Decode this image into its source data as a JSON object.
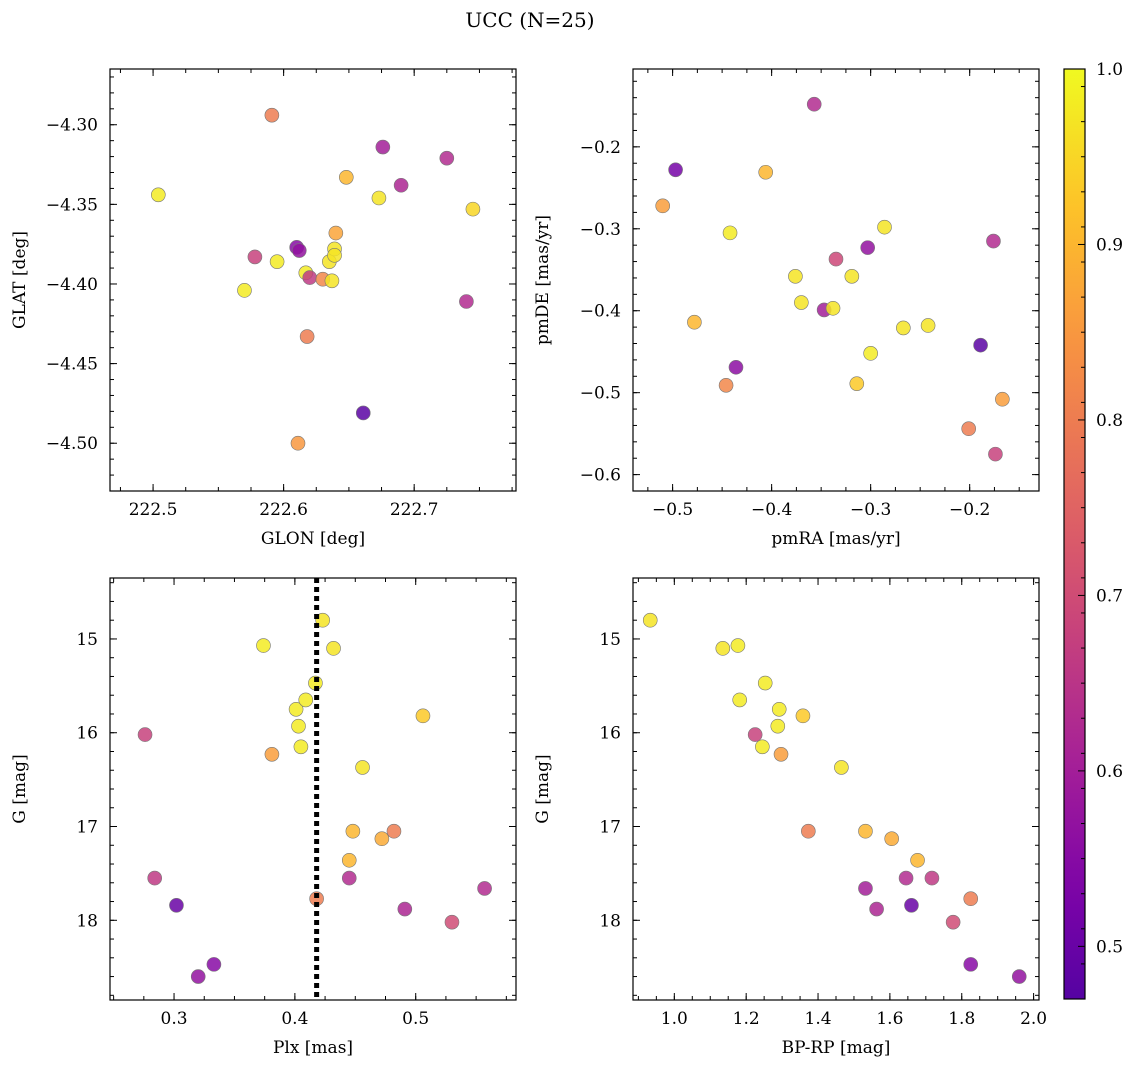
{
  "figure": {
    "title": "UCC (N=25)"
  },
  "colorbar": {
    "cmap": "plasma",
    "range": [
      0.47,
      1.0
    ],
    "ticks": [
      0.5,
      0.6,
      0.7,
      0.8,
      0.9,
      1.0
    ],
    "tick_labels": [
      "0.5",
      "0.6",
      "0.7",
      "0.8",
      "0.9",
      "1.0"
    ]
  },
  "chart_data": [
    {
      "type": "scatter",
      "id": "glon_glat",
      "xlabel": "GLON [deg]",
      "ylabel": "GLAT [deg]",
      "xlim": [
        222.467,
        222.778
      ],
      "ylim": [
        -4.53,
        -4.265
      ],
      "invert_y": false,
      "xticks": [
        222.5,
        222.6,
        222.7
      ],
      "xtick_labels": [
        "222.5",
        "222.6",
        "222.7"
      ],
      "yticks": [
        -4.3,
        -4.35,
        -4.4,
        -4.45,
        -4.5
      ],
      "ytick_labels": [
        "−4.30",
        "−4.35",
        "−4.40",
        "−4.45",
        "−4.50"
      ],
      "points": [
        {
          "x": 222.504,
          "y": -4.344,
          "c": 0.98
        },
        {
          "x": 222.591,
          "y": -4.294,
          "c": 0.8
        },
        {
          "x": 222.578,
          "y": -4.383,
          "c": 0.68
        },
        {
          "x": 222.57,
          "y": -4.404,
          "c": 0.98
        },
        {
          "x": 222.595,
          "y": -4.386,
          "c": 0.98
        },
        {
          "x": 222.61,
          "y": -4.377,
          "c": 0.55
        },
        {
          "x": 222.612,
          "y": -4.379,
          "c": 0.57
        },
        {
          "x": 222.617,
          "y": -4.393,
          "c": 0.98
        },
        {
          "x": 222.62,
          "y": -4.396,
          "c": 0.66
        },
        {
          "x": 222.618,
          "y": -4.433,
          "c": 0.8
        },
        {
          "x": 222.611,
          "y": -4.5,
          "c": 0.85
        },
        {
          "x": 222.63,
          "y": -4.397,
          "c": 0.82
        },
        {
          "x": 222.635,
          "y": -4.386,
          "c": 0.97
        },
        {
          "x": 222.637,
          "y": -4.398,
          "c": 0.97
        },
        {
          "x": 222.639,
          "y": -4.378,
          "c": 0.97
        },
        {
          "x": 222.639,
          "y": -4.382,
          "c": 0.97
        },
        {
          "x": 222.64,
          "y": -4.368,
          "c": 0.87
        },
        {
          "x": 222.648,
          "y": -4.333,
          "c": 0.9
        },
        {
          "x": 222.661,
          "y": -4.481,
          "c": 0.48
        },
        {
          "x": 222.673,
          "y": -4.346,
          "c": 0.97
        },
        {
          "x": 222.676,
          "y": -4.314,
          "c": 0.6
        },
        {
          "x": 222.69,
          "y": -4.338,
          "c": 0.62
        },
        {
          "x": 222.725,
          "y": -4.321,
          "c": 0.63
        },
        {
          "x": 222.74,
          "y": -4.411,
          "c": 0.63
        },
        {
          "x": 222.745,
          "y": -4.353,
          "c": 0.95
        }
      ]
    },
    {
      "type": "scatter",
      "id": "pmra_pmde",
      "xlabel": "pmRA [mas/yr]",
      "ylabel": "pmDE [mas/yr]",
      "xlim": [
        -0.54,
        -0.13
      ],
      "ylim": [
        -0.62,
        -0.105
      ],
      "invert_y": false,
      "xticks": [
        -0.5,
        -0.4,
        -0.3,
        -0.2
      ],
      "xtick_labels": [
        "−0.5",
        "−0.4",
        "−0.3",
        "−0.2"
      ],
      "yticks": [
        -0.2,
        -0.3,
        -0.4,
        -0.5,
        -0.6
      ],
      "ytick_labels": [
        "−0.2",
        "−0.3",
        "−0.4",
        "−0.5",
        "−0.6"
      ],
      "points": [
        {
          "x": -0.51,
          "y": -0.272,
          "c": 0.86
        },
        {
          "x": -0.497,
          "y": -0.228,
          "c": 0.52
        },
        {
          "x": -0.478,
          "y": -0.414,
          "c": 0.9
        },
        {
          "x": -0.442,
          "y": -0.305,
          "c": 0.98
        },
        {
          "x": -0.446,
          "y": -0.491,
          "c": 0.82
        },
        {
          "x": -0.436,
          "y": -0.469,
          "c": 0.56
        },
        {
          "x": -0.406,
          "y": -0.231,
          "c": 0.9
        },
        {
          "x": -0.376,
          "y": -0.358,
          "c": 0.97
        },
        {
          "x": -0.37,
          "y": -0.39,
          "c": 0.97
        },
        {
          "x": -0.357,
          "y": -0.148,
          "c": 0.63
        },
        {
          "x": -0.347,
          "y": -0.399,
          "c": 0.6
        },
        {
          "x": -0.338,
          "y": -0.397,
          "c": 0.97
        },
        {
          "x": -0.335,
          "y": -0.337,
          "c": 0.69
        },
        {
          "x": -0.319,
          "y": -0.358,
          "c": 0.97
        },
        {
          "x": -0.314,
          "y": -0.489,
          "c": 0.93
        },
        {
          "x": -0.303,
          "y": -0.323,
          "c": 0.57
        },
        {
          "x": -0.3,
          "y": -0.452,
          "c": 0.98
        },
        {
          "x": -0.286,
          "y": -0.298,
          "c": 0.97
        },
        {
          "x": -0.267,
          "y": -0.421,
          "c": 0.97
        },
        {
          "x": -0.242,
          "y": -0.418,
          "c": 0.97
        },
        {
          "x": -0.201,
          "y": -0.544,
          "c": 0.8
        },
        {
          "x": -0.189,
          "y": -0.442,
          "c": 0.48
        },
        {
          "x": -0.176,
          "y": -0.315,
          "c": 0.63
        },
        {
          "x": -0.174,
          "y": -0.575,
          "c": 0.68
        },
        {
          "x": -0.167,
          "y": -0.508,
          "c": 0.86
        }
      ]
    },
    {
      "type": "scatter",
      "id": "plx_g",
      "xlabel": "Plx [mas]",
      "ylabel": "G [mag]",
      "xlim": [
        0.247,
        0.583
      ],
      "ylim": [
        18.85,
        14.35
      ],
      "invert_y": true,
      "xticks": [
        0.3,
        0.4,
        0.5
      ],
      "xtick_labels": [
        "0.3",
        "0.4",
        "0.5"
      ],
      "yticks": [
        15,
        16,
        17,
        18
      ],
      "ytick_labels": [
        "15",
        "16",
        "17",
        "18"
      ],
      "vline": {
        "x": 0.418,
        "style": "dotted"
      },
      "points": [
        {
          "x": 0.276,
          "y": 16.02,
          "c": 0.68
        },
        {
          "x": 0.284,
          "y": 17.55,
          "c": 0.66
        },
        {
          "x": 0.302,
          "y": 17.84,
          "c": 0.5
        },
        {
          "x": 0.32,
          "y": 18.6,
          "c": 0.57
        },
        {
          "x": 0.333,
          "y": 18.47,
          "c": 0.55
        },
        {
          "x": 0.374,
          "y": 15.07,
          "c": 0.98
        },
        {
          "x": 0.381,
          "y": 16.23,
          "c": 0.86
        },
        {
          "x": 0.401,
          "y": 15.75,
          "c": 0.98
        },
        {
          "x": 0.403,
          "y": 15.93,
          "c": 0.98
        },
        {
          "x": 0.405,
          "y": 16.15,
          "c": 0.98
        },
        {
          "x": 0.409,
          "y": 15.65,
          "c": 0.98
        },
        {
          "x": 0.417,
          "y": 15.47,
          "c": 0.98
        },
        {
          "x": 0.418,
          "y": 17.77,
          "c": 0.8
        },
        {
          "x": 0.423,
          "y": 14.8,
          "c": 0.97
        },
        {
          "x": 0.432,
          "y": 15.1,
          "c": 0.97
        },
        {
          "x": 0.445,
          "y": 17.36,
          "c": 0.9
        },
        {
          "x": 0.445,
          "y": 17.55,
          "c": 0.63
        },
        {
          "x": 0.448,
          "y": 17.05,
          "c": 0.9
        },
        {
          "x": 0.456,
          "y": 16.37,
          "c": 0.97
        },
        {
          "x": 0.472,
          "y": 17.13,
          "c": 0.88
        },
        {
          "x": 0.482,
          "y": 17.05,
          "c": 0.8
        },
        {
          "x": 0.491,
          "y": 17.88,
          "c": 0.62
        },
        {
          "x": 0.506,
          "y": 15.82,
          "c": 0.93
        },
        {
          "x": 0.53,
          "y": 18.02,
          "c": 0.7
        },
        {
          "x": 0.557,
          "y": 17.66,
          "c": 0.63
        }
      ]
    },
    {
      "type": "scatter",
      "id": "bprp_g",
      "xlabel": "BP-RP [mag]",
      "ylabel": "G [mag]",
      "xlim": [
        0.885,
        2.015
      ],
      "ylim": [
        18.85,
        14.35
      ],
      "invert_y": true,
      "xticks": [
        1.0,
        1.2,
        1.4,
        1.6,
        1.8,
        2.0
      ],
      "xtick_labels": [
        "1.0",
        "1.2",
        "1.4",
        "1.6",
        "1.8",
        "2.0"
      ],
      "yticks": [
        15,
        16,
        17,
        18
      ],
      "ytick_labels": [
        "15",
        "16",
        "17",
        "18"
      ],
      "points": [
        {
          "x": 0.933,
          "y": 14.8,
          "c": 0.97
        },
        {
          "x": 1.135,
          "y": 15.1,
          "c": 0.97
        },
        {
          "x": 1.177,
          "y": 15.07,
          "c": 0.98
        },
        {
          "x": 1.182,
          "y": 15.65,
          "c": 0.98
        },
        {
          "x": 1.225,
          "y": 16.02,
          "c": 0.68
        },
        {
          "x": 1.245,
          "y": 16.15,
          "c": 0.98
        },
        {
          "x": 1.253,
          "y": 15.47,
          "c": 0.98
        },
        {
          "x": 1.288,
          "y": 15.93,
          "c": 0.98
        },
        {
          "x": 1.292,
          "y": 15.75,
          "c": 0.98
        },
        {
          "x": 1.297,
          "y": 16.23,
          "c": 0.86
        },
        {
          "x": 1.358,
          "y": 15.82,
          "c": 0.93
        },
        {
          "x": 1.373,
          "y": 17.05,
          "c": 0.8
        },
        {
          "x": 1.465,
          "y": 16.37,
          "c": 0.97
        },
        {
          "x": 1.532,
          "y": 17.05,
          "c": 0.9
        },
        {
          "x": 1.532,
          "y": 17.66,
          "c": 0.6
        },
        {
          "x": 1.563,
          "y": 17.88,
          "c": 0.62
        },
        {
          "x": 1.605,
          "y": 17.13,
          "c": 0.88
        },
        {
          "x": 1.645,
          "y": 17.55,
          "c": 0.63
        },
        {
          "x": 1.66,
          "y": 17.84,
          "c": 0.5
        },
        {
          "x": 1.677,
          "y": 17.36,
          "c": 0.9
        },
        {
          "x": 1.717,
          "y": 17.55,
          "c": 0.66
        },
        {
          "x": 1.776,
          "y": 18.02,
          "c": 0.7
        },
        {
          "x": 1.825,
          "y": 17.77,
          "c": 0.8
        },
        {
          "x": 1.825,
          "y": 18.47,
          "c": 0.55
        },
        {
          "x": 1.96,
          "y": 18.6,
          "c": 0.57
        }
      ]
    }
  ]
}
